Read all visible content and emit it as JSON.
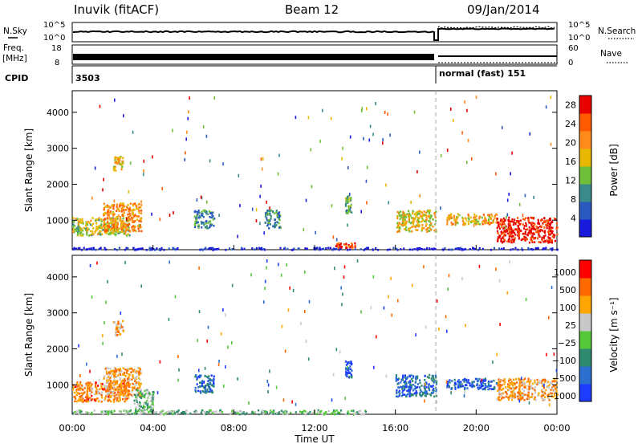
{
  "header": {
    "station": "Inuvik (fitACF)",
    "beam": "Beam 12",
    "date": "09/Jan/2014"
  },
  "left_labels": {
    "nsky": "N.Sky",
    "freq": "Freq.",
    "mhz": "[MHz]",
    "cpid": "CPID"
  },
  "right_labels": {
    "nsearch": "N.Search",
    "nave": "Nave"
  },
  "noise_panel": {
    "left_ticks": [
      "10^5",
      "10^0"
    ],
    "right_ticks": [
      "10^5",
      "10^0"
    ]
  },
  "freq_panel": {
    "left_ticks": [
      "18",
      "8"
    ],
    "right_ticks": [
      "60",
      "0"
    ]
  },
  "cpid_panel": {
    "segment1": "3503",
    "segment2": "normal (fast) 151"
  },
  "colors": {
    "power_scale": [
      "#1a1adc",
      "#2a5ac0",
      "#3a8a8a",
      "#6fbf3a",
      "#e8b800",
      "#ff8c1a",
      "#ff5a00",
      "#e60000"
    ],
    "velocity_scale": [
      "#1e3cff",
      "#2b6fcf",
      "#2f8a6f",
      "#55c83a",
      "#c8c8c8",
      "#ffa600",
      "#ff6a00",
      "#ff0000"
    ]
  },
  "chart_data": [
    {
      "type": "heatmap",
      "title": "",
      "xlabel": "Time UT",
      "ylabel": "Slant Range [km]",
      "x_ticks": [
        "00:00",
        "04:00",
        "08:00",
        "12:00",
        "16:00",
        "20:00",
        "00:00"
      ],
      "y_ticks": [
        "1000",
        "2000",
        "3000",
        "4000"
      ],
      "ylim": [
        180,
        4600
      ],
      "xlim_hours": [
        0,
        24
      ],
      "colorbar": {
        "label": "Power [dB]",
        "ticks": [
          "4",
          "8",
          "12",
          "16",
          "20",
          "24",
          "28"
        ],
        "range": [
          0,
          30
        ]
      },
      "scatter_blocks": [
        {
          "t0": 0.0,
          "t1": 2.8,
          "r0": 600,
          "r1": 1100,
          "level": 0.5
        },
        {
          "t0": 1.5,
          "t1": 3.4,
          "r0": 700,
          "r1": 1500,
          "level": 0.7
        },
        {
          "t0": 0.0,
          "t1": 24.0,
          "r0": 200,
          "r1": 260,
          "level": 0.05
        },
        {
          "t0": 2.0,
          "t1": 2.5,
          "r0": 2400,
          "r1": 2800,
          "level": 0.6
        },
        {
          "t0": 13.0,
          "t1": 14.0,
          "r0": 250,
          "r1": 400,
          "level": 0.85
        },
        {
          "t0": 13.5,
          "t1": 13.8,
          "r0": 1200,
          "r1": 1700,
          "level": 0.4
        },
        {
          "t0": 16.0,
          "t1": 18.0,
          "r0": 700,
          "r1": 1300,
          "level": 0.55
        },
        {
          "t0": 18.5,
          "t1": 21.0,
          "r0": 900,
          "r1": 1200,
          "level": 0.6
        },
        {
          "t0": 21.0,
          "t1": 24.0,
          "r0": 400,
          "r1": 1100,
          "level": 0.95
        },
        {
          "t0": 6.0,
          "t1": 7.0,
          "r0": 800,
          "r1": 1300,
          "level": 0.3
        },
        {
          "t0": 9.5,
          "t1": 10.3,
          "r0": 800,
          "r1": 1300,
          "level": 0.3
        }
      ]
    },
    {
      "type": "heatmap",
      "title": "",
      "xlabel": "Time UT",
      "ylabel": "Slant Range [km]",
      "x_ticks": [
        "00:00",
        "04:00",
        "08:00",
        "12:00",
        "16:00",
        "20:00",
        "00:00"
      ],
      "y_ticks": [
        "1000",
        "2000",
        "3000",
        "4000"
      ],
      "ylim": [
        180,
        4600
      ],
      "xlim_hours": [
        0,
        24
      ],
      "colorbar": {
        "label": "Velocity [m s⁻¹]",
        "ticks": [
          "1000",
          "500",
          "100",
          "25",
          "−25",
          "−100",
          "−500",
          "−1000"
        ]
      },
      "scatter_blocks": [
        {
          "t0": 0.0,
          "t1": 2.8,
          "r0": 550,
          "r1": 1100,
          "level": 0.75
        },
        {
          "t0": 1.5,
          "t1": 3.4,
          "r0": 700,
          "r1": 1500,
          "level": 0.7
        },
        {
          "t0": 3.0,
          "t1": 4.0,
          "r0": 300,
          "r1": 900,
          "level": 0.45
        },
        {
          "t0": 0.0,
          "t1": 14.5,
          "r0": 200,
          "r1": 320,
          "level": 0.45
        },
        {
          "t0": 2.0,
          "t1": 2.5,
          "r0": 2400,
          "r1": 2800,
          "level": 0.7
        },
        {
          "t0": 13.5,
          "t1": 13.8,
          "r0": 1200,
          "r1": 1700,
          "level": 0.1
        },
        {
          "t0": 16.0,
          "t1": 18.0,
          "r0": 700,
          "r1": 1300,
          "level": 0.2
        },
        {
          "t0": 18.5,
          "t1": 21.0,
          "r0": 900,
          "r1": 1200,
          "level": 0.15
        },
        {
          "t0": 21.0,
          "t1": 24.0,
          "r0": 600,
          "r1": 1200,
          "level": 0.7
        },
        {
          "t0": 6.0,
          "t1": 7.0,
          "r0": 800,
          "r1": 1300,
          "level": 0.2
        }
      ]
    }
  ]
}
